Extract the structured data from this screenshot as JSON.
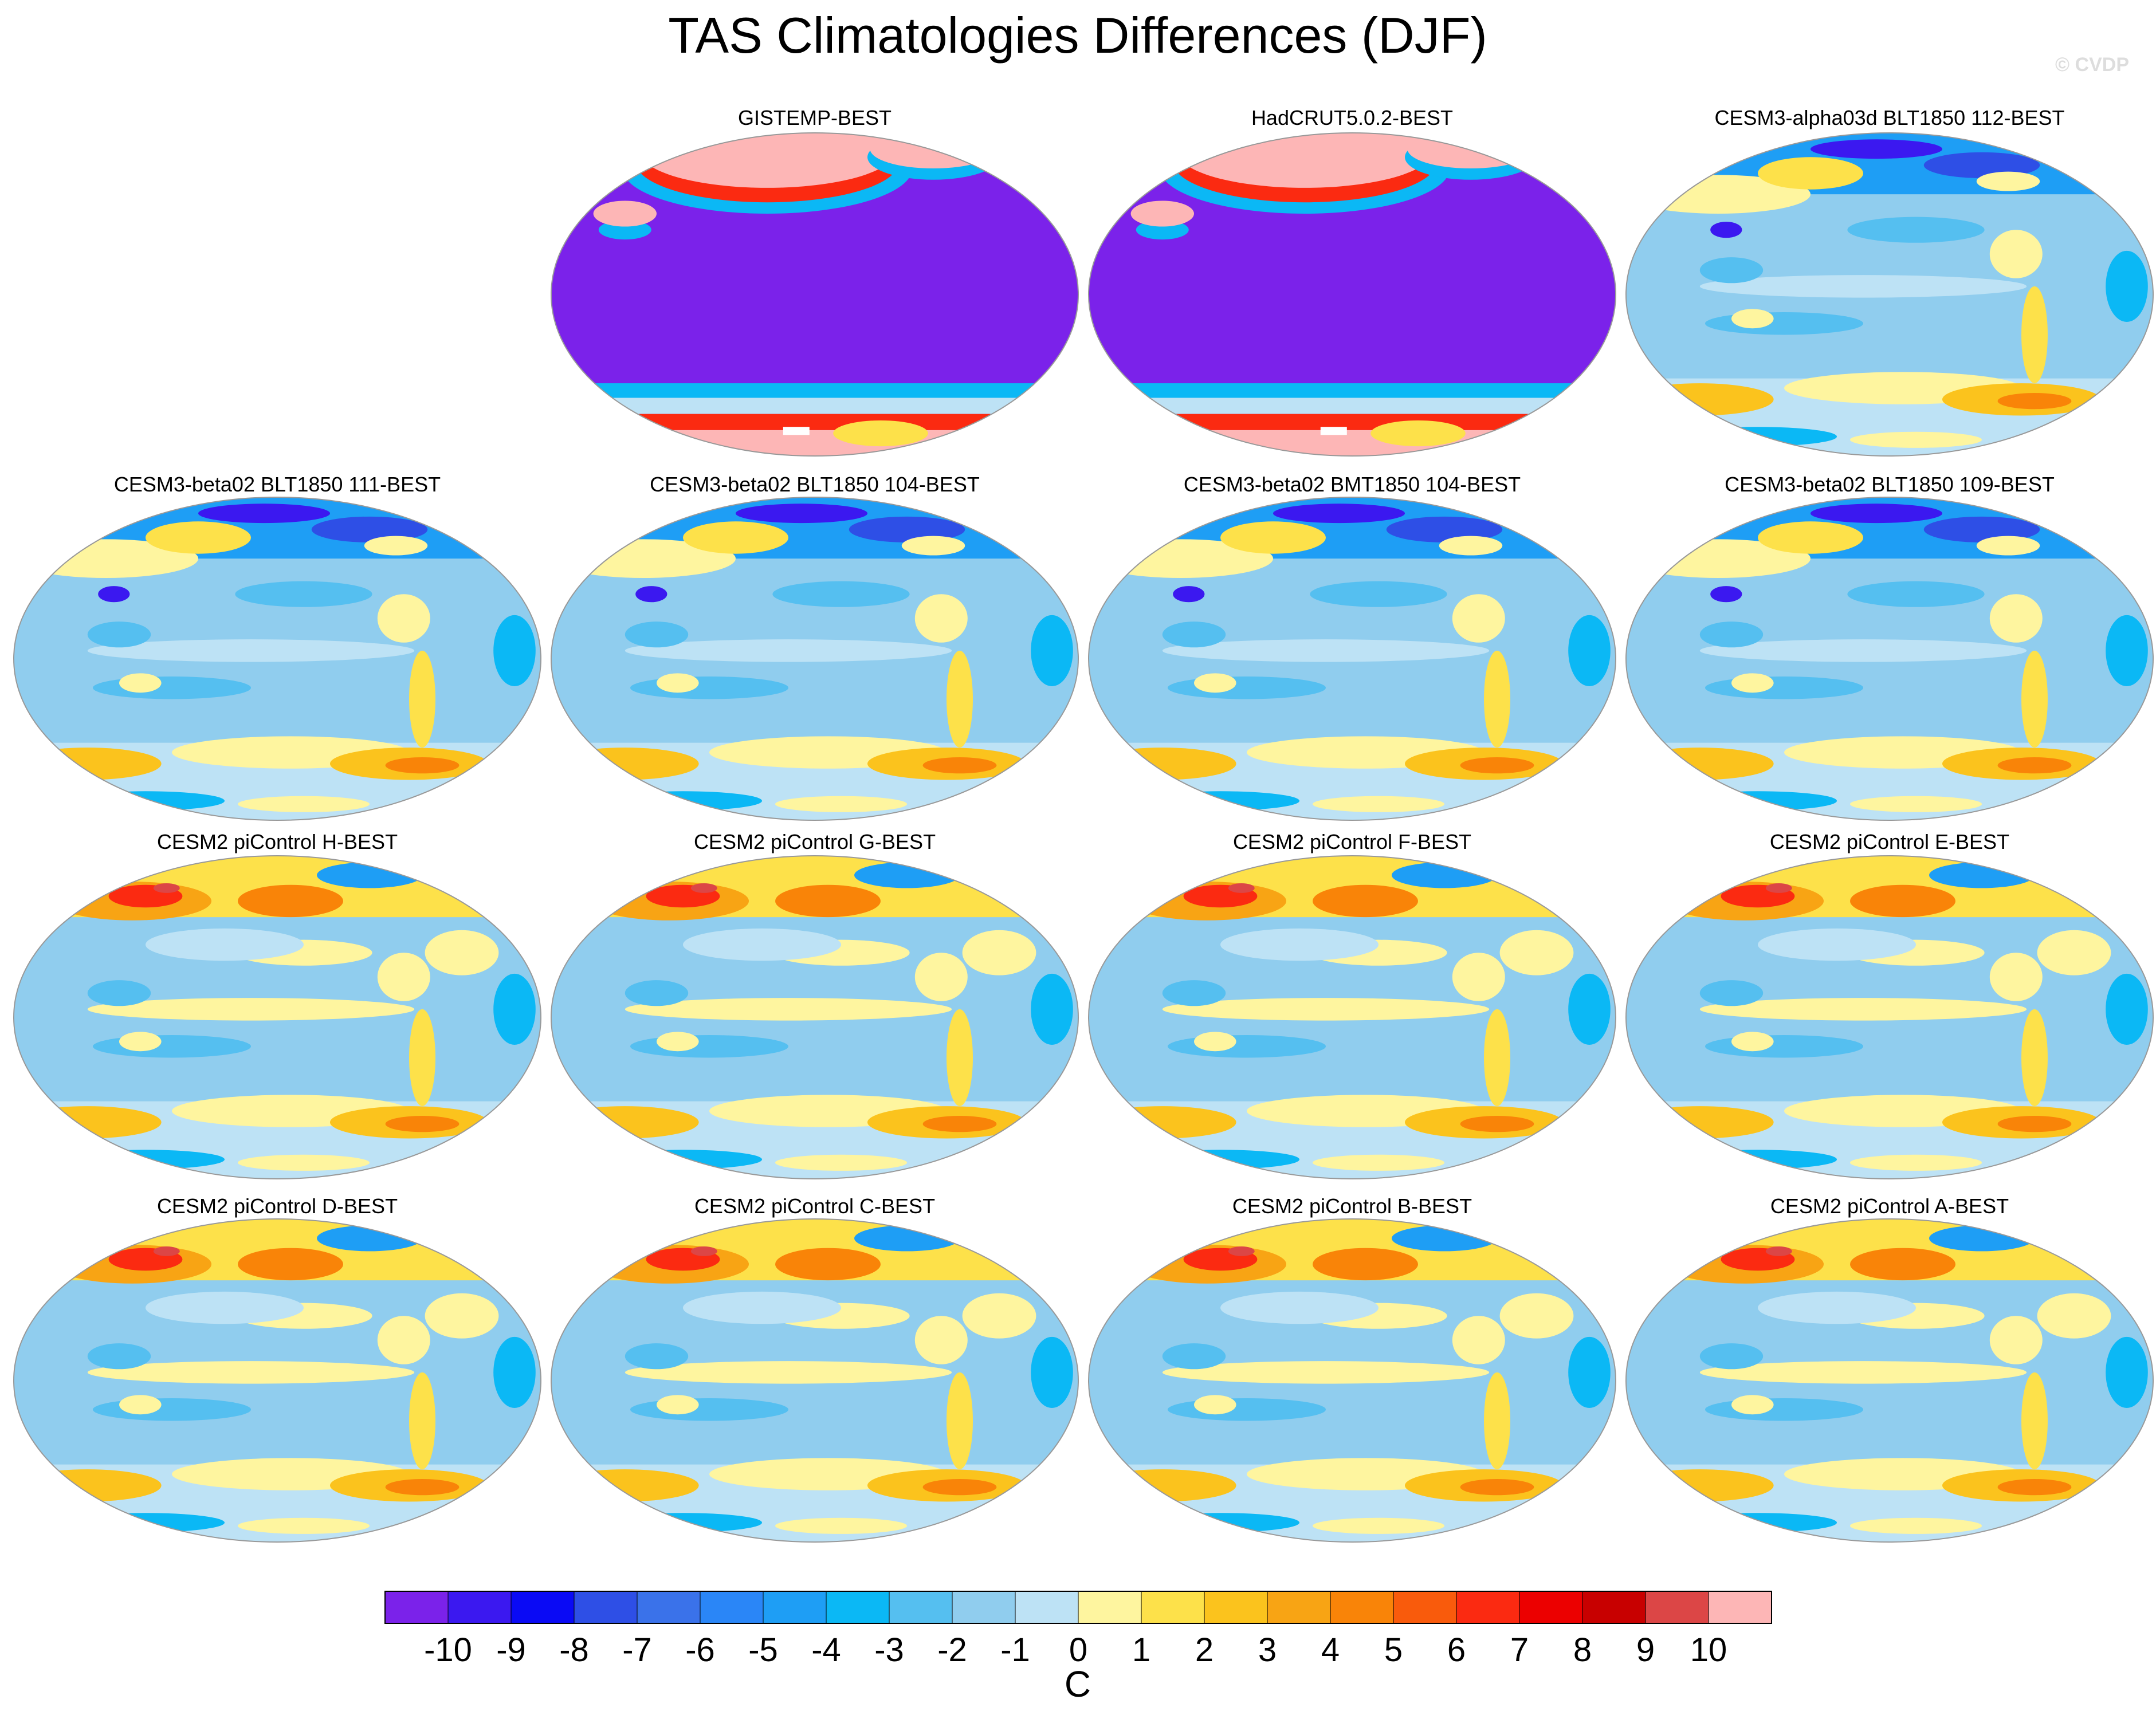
{
  "watermark": "© CVDP",
  "chart_data": {
    "type": "heatmap",
    "title": "TAS Climatologies Differences (DJF)",
    "projection": "Robinson, Pacific-centered",
    "units": "C",
    "colorbar": {
      "ticks": [
        "-10",
        "-9",
        "-8",
        "-7",
        "-6",
        "-5",
        "-4",
        "-3",
        "-2",
        "-1",
        "0",
        "1",
        "2",
        "3",
        "4",
        "5",
        "6",
        "7",
        "8",
        "9",
        "10"
      ],
      "colors": [
        "#7b22ea",
        "#3b18f0",
        "#0a0af5",
        "#2e4fe6",
        "#3a72ea",
        "#2a86f7",
        "#1e9ef5",
        "#0bb8f5",
        "#55bff0",
        "#90cdee",
        "#bde2f5",
        "#fef59f",
        "#fde14a",
        "#fbc31d",
        "#f8a414",
        "#f98408",
        "#f95b0c",
        "#fb2a11",
        "#ec0000",
        "#c80000",
        "#dc4646",
        "#fdb6b6"
      ]
    },
    "panels": [
      {
        "title": "GISTEMP-BEST",
        "style": "obs"
      },
      {
        "title": "HadCRUT5.0.2-BEST",
        "style": "obs"
      },
      {
        "title": "CESM3-alpha03d BLT1850 112-BEST",
        "style": "cold"
      },
      {
        "title": "CESM3-beta02 BLT1850 111-BEST",
        "style": "cold"
      },
      {
        "title": "CESM3-beta02 BLT1850 104-BEST",
        "style": "cold"
      },
      {
        "title": "CESM3-beta02 BMT1850 104-BEST",
        "style": "cold"
      },
      {
        "title": "CESM3-beta02 BLT1850 109-BEST",
        "style": "cold"
      },
      {
        "title": "CESM2 piControl H-BEST",
        "style": "warm"
      },
      {
        "title": "CESM2 piControl G-BEST",
        "style": "warm"
      },
      {
        "title": "CESM2 piControl F-BEST",
        "style": "warm"
      },
      {
        "title": "CESM2 piControl E-BEST",
        "style": "warm"
      },
      {
        "title": "CESM2 piControl D-BEST",
        "style": "warm"
      },
      {
        "title": "CESM2 piControl C-BEST",
        "style": "warm"
      },
      {
        "title": "CESM2 piControl B-BEST",
        "style": "warm"
      },
      {
        "title": "CESM2 piControl A-BEST",
        "style": "warm"
      }
    ]
  }
}
